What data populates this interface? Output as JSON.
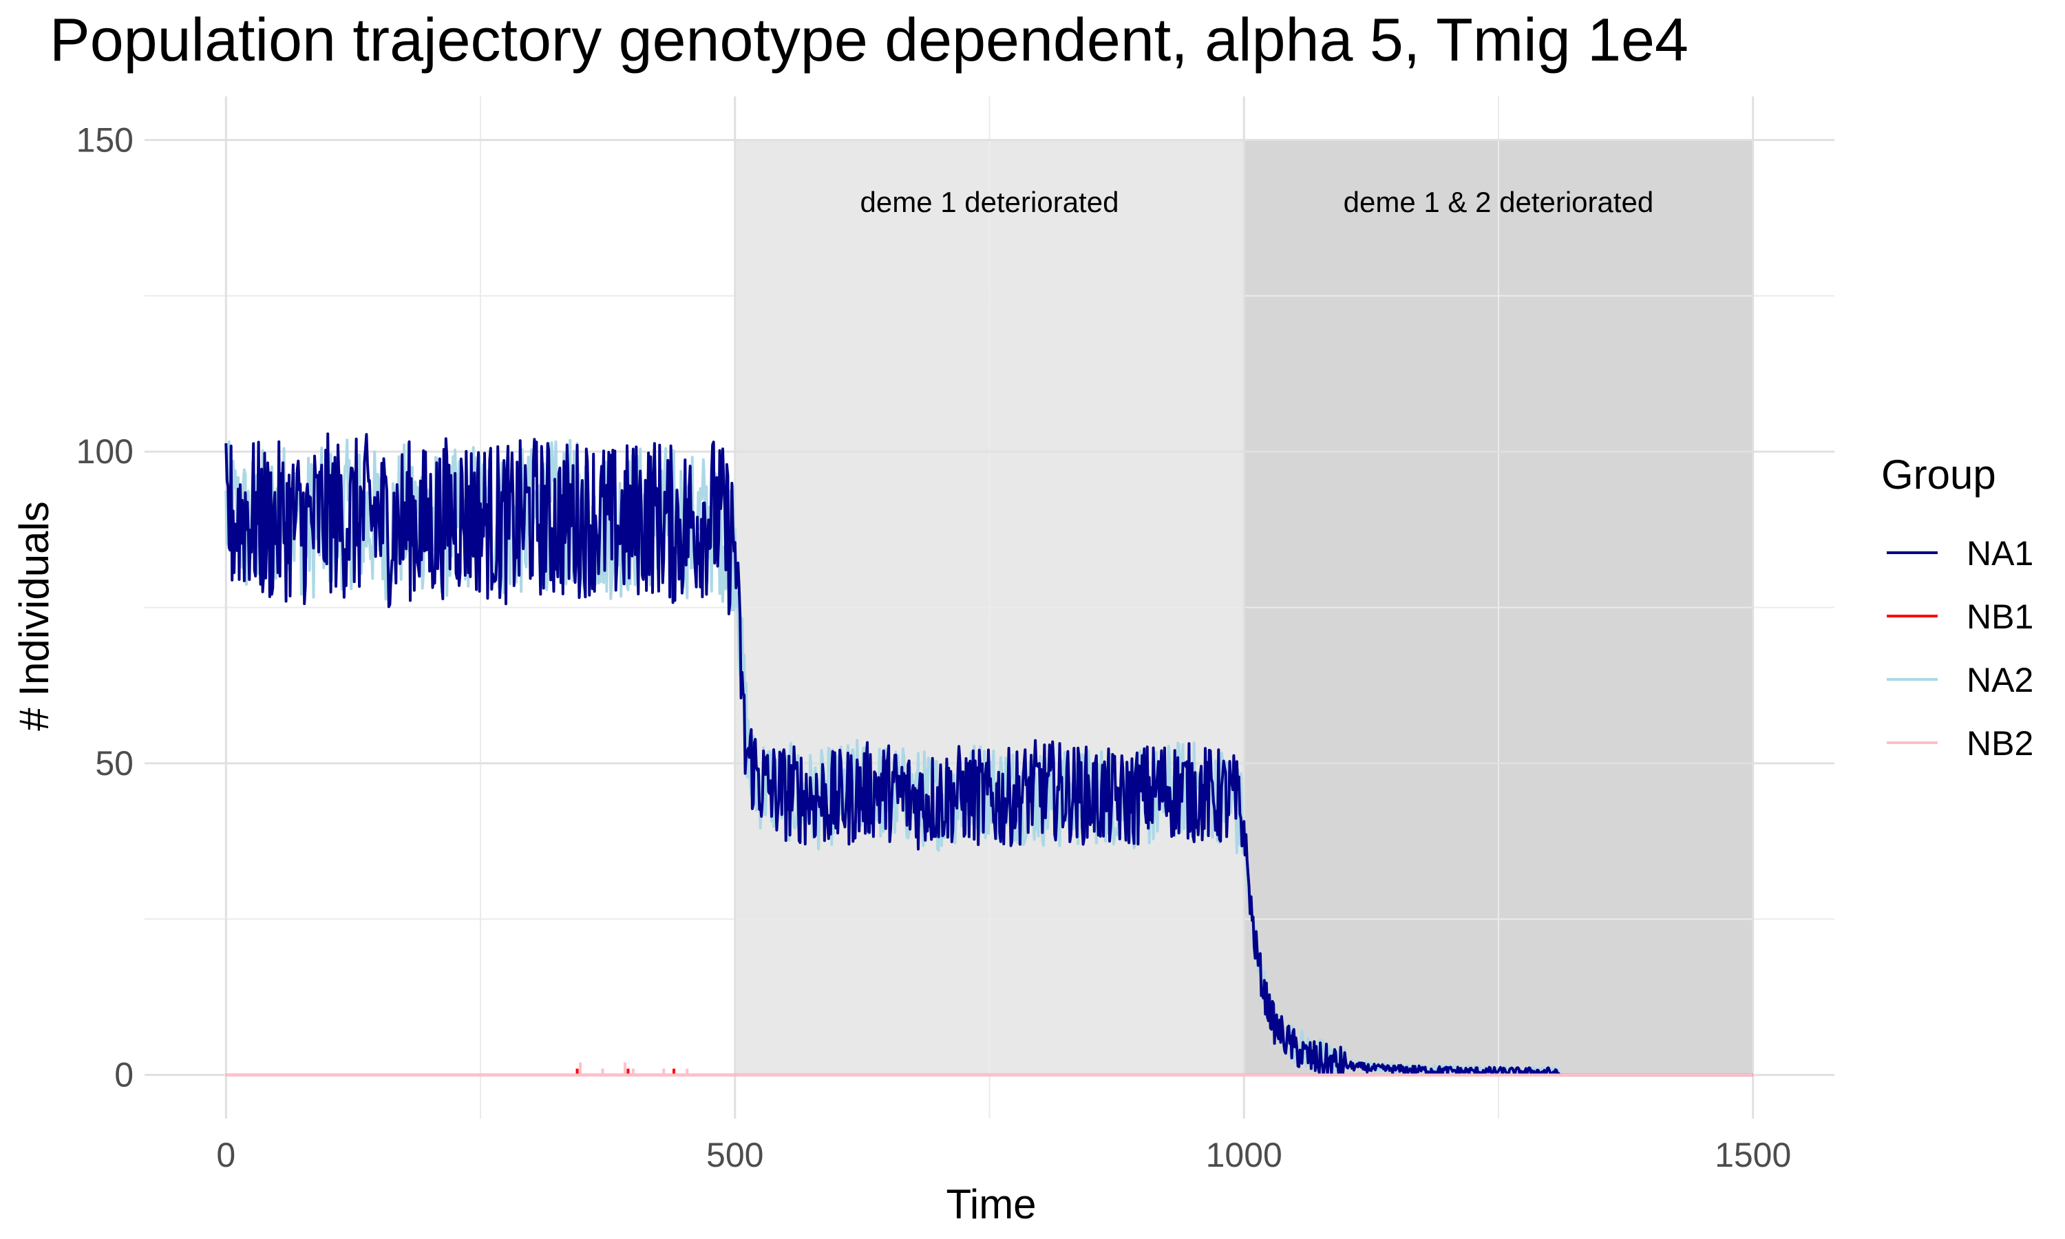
{
  "chart_data": {
    "type": "line",
    "title": "Population trajectory genotype dependent, alpha 5, Tmig 1e4",
    "xlabel": "Time",
    "ylabel": "# Individuals",
    "xlim": [
      -80,
      1580
    ],
    "ylim": [
      -7,
      157
    ],
    "xticks": [
      0,
      500,
      1000,
      1500
    ],
    "yticks": [
      0,
      50,
      100,
      150
    ],
    "x_minor": [
      250,
      750,
      1250
    ],
    "y_minor": [
      25,
      75,
      125
    ],
    "grid": true,
    "legend": {
      "title": "Group",
      "position": "right"
    },
    "regions": [
      {
        "x_start": 500,
        "x_end": 1000,
        "label": "deme 1 deteriorated",
        "fill": "#e8e8e8"
      },
      {
        "x_start": 1000,
        "x_end": 1500,
        "label": "deme 1 & 2 deteriorated",
        "fill": "#d6d6d6"
      }
    ],
    "series": [
      {
        "name": "NA1",
        "color": "#00008b",
        "points": [
          [
            0,
            89
          ],
          [
            20,
            90
          ],
          [
            40,
            88
          ],
          [
            60,
            89
          ],
          [
            80,
            88
          ],
          [
            100,
            90
          ],
          [
            120,
            89
          ],
          [
            140,
            90
          ],
          [
            160,
            88
          ],
          [
            180,
            89
          ],
          [
            200,
            88
          ],
          [
            220,
            90
          ],
          [
            240,
            90
          ],
          [
            260,
            89
          ],
          [
            280,
            88
          ],
          [
            300,
            90
          ],
          [
            320,
            89
          ],
          [
            340,
            89
          ],
          [
            360,
            90
          ],
          [
            380,
            88
          ],
          [
            400,
            89
          ],
          [
            420,
            90
          ],
          [
            440,
            88
          ],
          [
            460,
            89
          ],
          [
            480,
            90
          ],
          [
            500,
            85
          ],
          [
            510,
            52
          ],
          [
            530,
            46
          ],
          [
            560,
            45
          ],
          [
            600,
            44
          ],
          [
            640,
            46
          ],
          [
            680,
            44
          ],
          [
            720,
            45
          ],
          [
            760,
            44
          ],
          [
            800,
            46
          ],
          [
            840,
            45
          ],
          [
            880,
            44
          ],
          [
            920,
            46
          ],
          [
            960,
            45
          ],
          [
            990,
            44
          ],
          [
            1000,
            40
          ],
          [
            1005,
            30
          ],
          [
            1010,
            22
          ],
          [
            1020,
            13
          ],
          [
            1030,
            8
          ],
          [
            1045,
            5
          ],
          [
            1060,
            3
          ],
          [
            1080,
            2
          ],
          [
            1100,
            1.5
          ],
          [
            1130,
            1
          ],
          [
            1170,
            0.8
          ],
          [
            1220,
            0.6
          ],
          [
            1270,
            0.5
          ],
          [
            1300,
            0.5
          ],
          [
            1310,
            0
          ],
          [
            1500,
            0
          ]
        ],
        "noise": [
          {
            "x_start": 0,
            "x_end": 500,
            "amplitude": 13
          },
          {
            "x_start": 500,
            "x_end": 1000,
            "amplitude": 8
          },
          {
            "x_start": 1000,
            "x_end": 1100,
            "amplitude": 3
          },
          {
            "x_start": 1100,
            "x_end": 1310,
            "amplitude": 0.7
          }
        ]
      },
      {
        "name": "NB1",
        "color": "#ff0000",
        "points": [
          [
            0,
            0
          ],
          [
            1500,
            0
          ]
        ],
        "spikes": [
          [
            345,
            1
          ],
          [
            395,
            1
          ],
          [
            440,
            1
          ]
        ]
      },
      {
        "name": "NA2",
        "color": "#add8e6",
        "points": [
          [
            0,
            90
          ],
          [
            20,
            88
          ],
          [
            40,
            89
          ],
          [
            60,
            90
          ],
          [
            80,
            88
          ],
          [
            100,
            89
          ],
          [
            120,
            90
          ],
          [
            140,
            89
          ],
          [
            160,
            88
          ],
          [
            180,
            90
          ],
          [
            200,
            89
          ],
          [
            220,
            88
          ],
          [
            240,
            90
          ],
          [
            260,
            89
          ],
          [
            280,
            88
          ],
          [
            300,
            89
          ],
          [
            320,
            90
          ],
          [
            340,
            90
          ],
          [
            360,
            89
          ],
          [
            380,
            88
          ],
          [
            400,
            89
          ],
          [
            420,
            90
          ],
          [
            440,
            89
          ],
          [
            460,
            88
          ],
          [
            480,
            89
          ],
          [
            500,
            86
          ],
          [
            505,
            70
          ],
          [
            515,
            48
          ],
          [
            540,
            46
          ],
          [
            580,
            44
          ],
          [
            620,
            46
          ],
          [
            660,
            45
          ],
          [
            700,
            44
          ],
          [
            740,
            46
          ],
          [
            780,
            45
          ],
          [
            820,
            44
          ],
          [
            860,
            45
          ],
          [
            900,
            44
          ],
          [
            940,
            46
          ],
          [
            980,
            45
          ],
          [
            995,
            42
          ],
          [
            1000,
            40
          ],
          [
            1005,
            28
          ],
          [
            1015,
            18
          ],
          [
            1025,
            10
          ],
          [
            1040,
            6
          ],
          [
            1060,
            4
          ],
          [
            1080,
            2.5
          ],
          [
            1100,
            1.8
          ],
          [
            1130,
            1.2
          ],
          [
            1170,
            1
          ],
          [
            1220,
            0.8
          ],
          [
            1270,
            0.6
          ],
          [
            1305,
            0.5
          ],
          [
            1310,
            0
          ],
          [
            1500,
            0
          ]
        ],
        "noise": [
          {
            "x_start": 0,
            "x_end": 500,
            "amplitude": 12
          },
          {
            "x_start": 500,
            "x_end": 1000,
            "amplitude": 8
          },
          {
            "x_start": 1000,
            "x_end": 1100,
            "amplitude": 3
          },
          {
            "x_start": 1100,
            "x_end": 1310,
            "amplitude": 0.7
          }
        ]
      },
      {
        "name": "NB2",
        "color": "#ffc0cb",
        "points": [
          [
            0,
            0
          ],
          [
            1500,
            0
          ]
        ],
        "spikes": [
          [
            348,
            2
          ],
          [
            370,
            1
          ],
          [
            392,
            2
          ],
          [
            400,
            1
          ],
          [
            430,
            1
          ],
          [
            453,
            1
          ]
        ]
      }
    ]
  }
}
